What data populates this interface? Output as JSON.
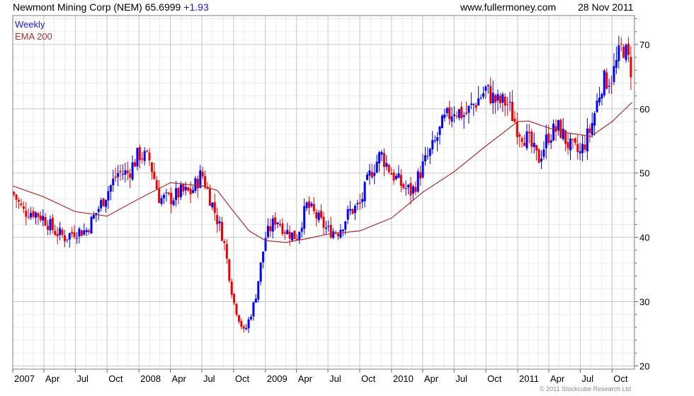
{
  "header": {
    "title": "Newmont Mining Corp (NEM) 65.6999",
    "change": "+1.93",
    "site": "www.fullermoney.com",
    "date": "28 Nov 2011"
  },
  "legend": {
    "weekly": "Weekly",
    "ema": "EMA 200"
  },
  "copyright": "© 2011 Stockcube Research Ltd",
  "colors": {
    "up": "#0000ff",
    "down": "#ee0000",
    "ema": "#a83232",
    "grid": "#d0d0d0",
    "frame": "#808080"
  },
  "chart_data": {
    "type": "candlestick",
    "frequency": "weekly",
    "y_scale": "linear",
    "ylim": [
      19.5,
      74.5
    ],
    "yticks": [
      20,
      30,
      40,
      50,
      60,
      70
    ],
    "y_axis_side": "right",
    "grid": true,
    "xlim": [
      "2007-01-01",
      "2011-12-05"
    ],
    "xticks": [
      {
        "label": "2007",
        "date": "2007-01-01"
      },
      {
        "label": "Apr",
        "date": "2007-04-01"
      },
      {
        "label": "Jul",
        "date": "2007-07-01"
      },
      {
        "label": "Oct",
        "date": "2007-10-01"
      },
      {
        "label": "2008",
        "date": "2008-01-01"
      },
      {
        "label": "Apr",
        "date": "2008-04-01"
      },
      {
        "label": "Jul",
        "date": "2008-07-01"
      },
      {
        "label": "Oct",
        "date": "2008-10-01"
      },
      {
        "label": "2009",
        "date": "2009-01-01"
      },
      {
        "label": "Apr",
        "date": "2009-04-01"
      },
      {
        "label": "Jul",
        "date": "2009-07-01"
      },
      {
        "label": "Oct",
        "date": "2009-10-01"
      },
      {
        "label": "2010",
        "date": "2010-01-01"
      },
      {
        "label": "Apr",
        "date": "2010-04-01"
      },
      {
        "label": "Jul",
        "date": "2010-07-01"
      },
      {
        "label": "Oct",
        "date": "2010-10-01"
      },
      {
        "label": "2011",
        "date": "2011-01-01"
      },
      {
        "label": "Apr",
        "date": "2011-04-01"
      },
      {
        "label": "Jul",
        "date": "2011-07-01"
      },
      {
        "label": "Oct",
        "date": "2011-10-01"
      }
    ],
    "series": [
      {
        "name": "Weekly",
        "style": "candlestick",
        "approx_close": [
          [
            "2007-01-01",
            47
          ],
          [
            "2007-02-01",
            44
          ],
          [
            "2007-03-01",
            44
          ],
          [
            "2007-04-01",
            43
          ],
          [
            "2007-05-01",
            41
          ],
          [
            "2007-06-01",
            40
          ],
          [
            "2007-07-01",
            41
          ],
          [
            "2007-08-01",
            41
          ],
          [
            "2007-09-01",
            44
          ],
          [
            "2007-10-01",
            47
          ],
          [
            "2007-11-01",
            50
          ],
          [
            "2007-12-01",
            50
          ],
          [
            "2008-01-01",
            53
          ],
          [
            "2008-02-01",
            52
          ],
          [
            "2008-03-01",
            46
          ],
          [
            "2008-04-01",
            46
          ],
          [
            "2008-05-01",
            47
          ],
          [
            "2008-06-01",
            47
          ],
          [
            "2008-07-01",
            50
          ],
          [
            "2008-08-01",
            45
          ],
          [
            "2008-09-01",
            40
          ],
          [
            "2008-10-01",
            30
          ],
          [
            "2008-11-01",
            25
          ],
          [
            "2008-12-01",
            30
          ],
          [
            "2009-01-01",
            40
          ],
          [
            "2009-02-01",
            43
          ],
          [
            "2009-03-01",
            41
          ],
          [
            "2009-04-01",
            40
          ],
          [
            "2009-05-01",
            45
          ],
          [
            "2009-06-01",
            43
          ],
          [
            "2009-07-01",
            41
          ],
          [
            "2009-08-01",
            41
          ],
          [
            "2009-09-01",
            44
          ],
          [
            "2009-10-01",
            45
          ],
          [
            "2009-11-01",
            50
          ],
          [
            "2009-12-01",
            53
          ],
          [
            "2010-01-01",
            50
          ],
          [
            "2010-02-01",
            48
          ],
          [
            "2010-03-01",
            47
          ],
          [
            "2010-04-01",
            51
          ],
          [
            "2010-05-01",
            54
          ],
          [
            "2010-06-01",
            58
          ],
          [
            "2010-07-01",
            60
          ],
          [
            "2010-08-01",
            59
          ],
          [
            "2010-09-01",
            61
          ],
          [
            "2010-10-01",
            63
          ],
          [
            "2010-11-01",
            61
          ],
          [
            "2010-12-01",
            61
          ],
          [
            "2011-01-01",
            57
          ],
          [
            "2011-02-01",
            55
          ],
          [
            "2011-03-01",
            52
          ],
          [
            "2011-04-01",
            56
          ],
          [
            "2011-05-01",
            57
          ],
          [
            "2011-06-01",
            54
          ],
          [
            "2011-07-01",
            53
          ],
          [
            "2011-08-01",
            57
          ],
          [
            "2011-09-01",
            64
          ],
          [
            "2011-10-01",
            65
          ],
          [
            "2011-11-01",
            70
          ],
          [
            "2011-11-28",
            65.7
          ]
        ]
      },
      {
        "name": "EMA 200",
        "style": "line",
        "approx_values": [
          [
            "2007-01-01",
            48
          ],
          [
            "2007-04-01",
            46.3
          ],
          [
            "2007-07-01",
            44
          ],
          [
            "2007-10-01",
            43.3
          ],
          [
            "2008-01-01",
            46
          ],
          [
            "2008-04-01",
            48.5
          ],
          [
            "2008-07-01",
            48
          ],
          [
            "2008-08-15",
            47.3
          ],
          [
            "2008-10-01",
            44
          ],
          [
            "2008-11-15",
            41
          ],
          [
            "2009-01-01",
            39.5
          ],
          [
            "2009-03-01",
            39.2
          ],
          [
            "2009-05-01",
            39.8
          ],
          [
            "2009-07-01",
            40.5
          ],
          [
            "2009-10-01",
            41
          ],
          [
            "2010-01-01",
            43
          ],
          [
            "2010-04-01",
            47
          ],
          [
            "2010-07-01",
            50.2
          ],
          [
            "2010-10-01",
            54.2
          ],
          [
            "2011-01-01",
            58
          ],
          [
            "2011-02-01",
            58.1
          ],
          [
            "2011-04-01",
            57
          ],
          [
            "2011-06-01",
            56.2
          ],
          [
            "2011-08-01",
            55.7
          ],
          [
            "2011-10-01",
            58
          ],
          [
            "2011-11-28",
            61
          ]
        ]
      }
    ]
  }
}
